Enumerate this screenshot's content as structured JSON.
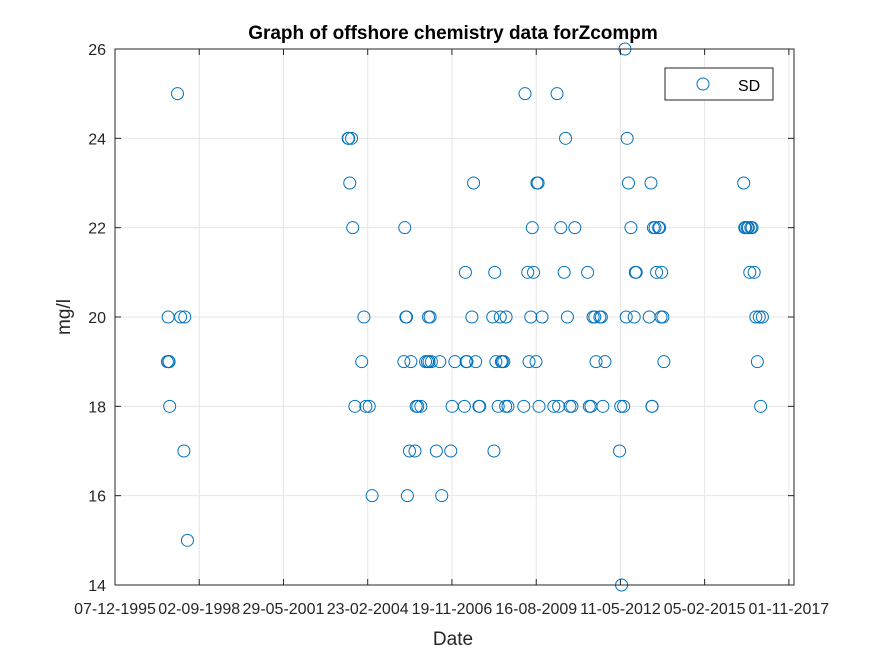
{
  "chart_data": {
    "type": "scatter",
    "title": "Graph of offshore chemistry data forZcompm",
    "xlabel": "Date",
    "ylabel": "mg/l",
    "xlim": [
      "1995-12-07",
      "2018-01-01"
    ],
    "ylim": [
      14,
      26
    ],
    "xticks": [
      "1995-12-07",
      "1998-09-02",
      "2001-05-29",
      "2004-02-23",
      "2006-11-19",
      "2009-08-16",
      "2012-05-11",
      "2015-02-05",
      "2017-11-01"
    ],
    "xtick_labels": [
      "07-12-1995",
      "02-09-1998",
      "29-05-2001",
      "23-02-2004",
      "19-11-2006",
      "16-08-2009",
      "11-05-2012",
      "05-02-2015",
      "01-11-2017"
    ],
    "yticks": [
      14,
      16,
      18,
      20,
      22,
      24,
      26
    ],
    "ytick_labels": [
      "14",
      "16",
      "18",
      "20",
      "22",
      "24",
      "26"
    ],
    "grid": true,
    "legend_position": "top-right",
    "colors": {
      "marker": "#0072BD",
      "axis": "#262626",
      "grid": "#e6e6e6"
    },
    "series": [
      {
        "name": "SD",
        "marker": "circle-open",
        "x": [
          "1997-08-20",
          "1997-08-29",
          "1997-09-07",
          "1997-09-05",
          "1997-12-18",
          "1997-09-09",
          "1998-01-24",
          "1997-09-16",
          "1998-03-14",
          "1998-03-04",
          "1998-04-15",
          "2003-07-06",
          "2003-07-12",
          "2003-07-25",
          "2003-08-15",
          "2003-08-29",
          "2003-09-24",
          "2004-01-09",
          "2003-12-14",
          "2004-02-01",
          "2004-03-12",
          "2004-04-15",
          "2005-04-27",
          "2005-05-08",
          "2005-05-21",
          "2005-05-29",
          "2005-06-08",
          "2005-07-03",
          "2005-07-20",
          "2005-09-06",
          "2005-09-21",
          "2005-10-09",
          "2005-11-15",
          "2006-01-10",
          "2006-02-01",
          "2006-02-14",
          "2006-02-20",
          "2006-03-05",
          "2006-03-20",
          "2006-05-18",
          "2006-06-28",
          "2006-07-21",
          "2006-11-05",
          "2006-11-21",
          "2006-12-24",
          "2007-04-16",
          "2007-04-28",
          "2007-05-06",
          "2007-05-17",
          "2007-07-14",
          "2007-08-03",
          "2007-08-28",
          "2007-10-05",
          "2007-10-14",
          "2008-03-18",
          "2008-04-01",
          "2008-04-10",
          "2008-04-24",
          "2008-05-21",
          "2008-06-15",
          "2008-06-28",
          "2008-07-10",
          "2008-07-27",
          "2008-08-18",
          "2008-08-23",
          "2008-09-14",
          "2009-03-21",
          "2009-04-05",
          "2009-05-07",
          "2009-05-22",
          "2009-06-12",
          "2009-06-30",
          "2009-07-15",
          "2009-08-13",
          "2009-08-24",
          "2009-09-07",
          "2009-09-18",
          "2009-10-24",
          "2010-03-13",
          "2010-04-20",
          "2010-05-08",
          "2010-06-04",
          "2010-07-13",
          "2010-07-30",
          "2010-08-21",
          "2010-09-20",
          "2010-10-14",
          "2010-11-17",
          "2011-04-18",
          "2011-05-08",
          "2011-05-27",
          "2011-06-22",
          "2011-07-12",
          "2011-07-27",
          "2011-09-10",
          "2011-09-28",
          "2011-10-16",
          "2011-11-10",
          "2012-05-01",
          "2012-05-15",
          "2012-05-25",
          "2012-06-18",
          "2012-07-04",
          "2012-07-19",
          "2012-07-30",
          "2012-08-15",
          "2012-09-13",
          "2012-10-22",
          "2012-11-04",
          "2012-11-15",
          "2013-04-18",
          "2013-05-09",
          "2013-05-20",
          "2013-05-23",
          "2013-06-07",
          "2013-06-26",
          "2013-07-15",
          "2013-08-08",
          "2013-08-20",
          "2013-09-05",
          "2013-09-12",
          "2013-09-27",
          "2013-10-09",
          "2016-05-14",
          "2016-05-26",
          "2016-06-06",
          "2016-06-26",
          "2016-07-08",
          "2016-07-25",
          "2016-08-06",
          "2016-08-21",
          "2016-09-15",
          "2016-10-05",
          "2016-10-23",
          "2016-11-15",
          "2016-12-01",
          "2016-12-22"
        ],
        "y": [
          19,
          20,
          19,
          19,
          25,
          19,
          20,
          18,
          20,
          17,
          15,
          24,
          24,
          23,
          24,
          22,
          18,
          20,
          19,
          18,
          18,
          16,
          19,
          22,
          20,
          20,
          16,
          17,
          19,
          17,
          18,
          18,
          18,
          19,
          19,
          20,
          19,
          20,
          19,
          17,
          19,
          16,
          17,
          18,
          19,
          18,
          21,
          19,
          19,
          20,
          23,
          19,
          18,
          18,
          20,
          17,
          21,
          19,
          18,
          20,
          19,
          19,
          19,
          18,
          20,
          18,
          18,
          25,
          21,
          19,
          20,
          22,
          21,
          19,
          23,
          23,
          18,
          20,
          18,
          25,
          18,
          22,
          21,
          24,
          20,
          18,
          18,
          22,
          21,
          18,
          18,
          20,
          20,
          19,
          20,
          20,
          18,
          19,
          17,
          18,
          14,
          18,
          26,
          20,
          24,
          23,
          22,
          20,
          21,
          21,
          20,
          23,
          18,
          18,
          22,
          22,
          21,
          22,
          22,
          20,
          21,
          20,
          19,
          23,
          22,
          22,
          22,
          22,
          21,
          22,
          22,
          21,
          20,
          19,
          20,
          18,
          20
        ]
      }
    ]
  }
}
